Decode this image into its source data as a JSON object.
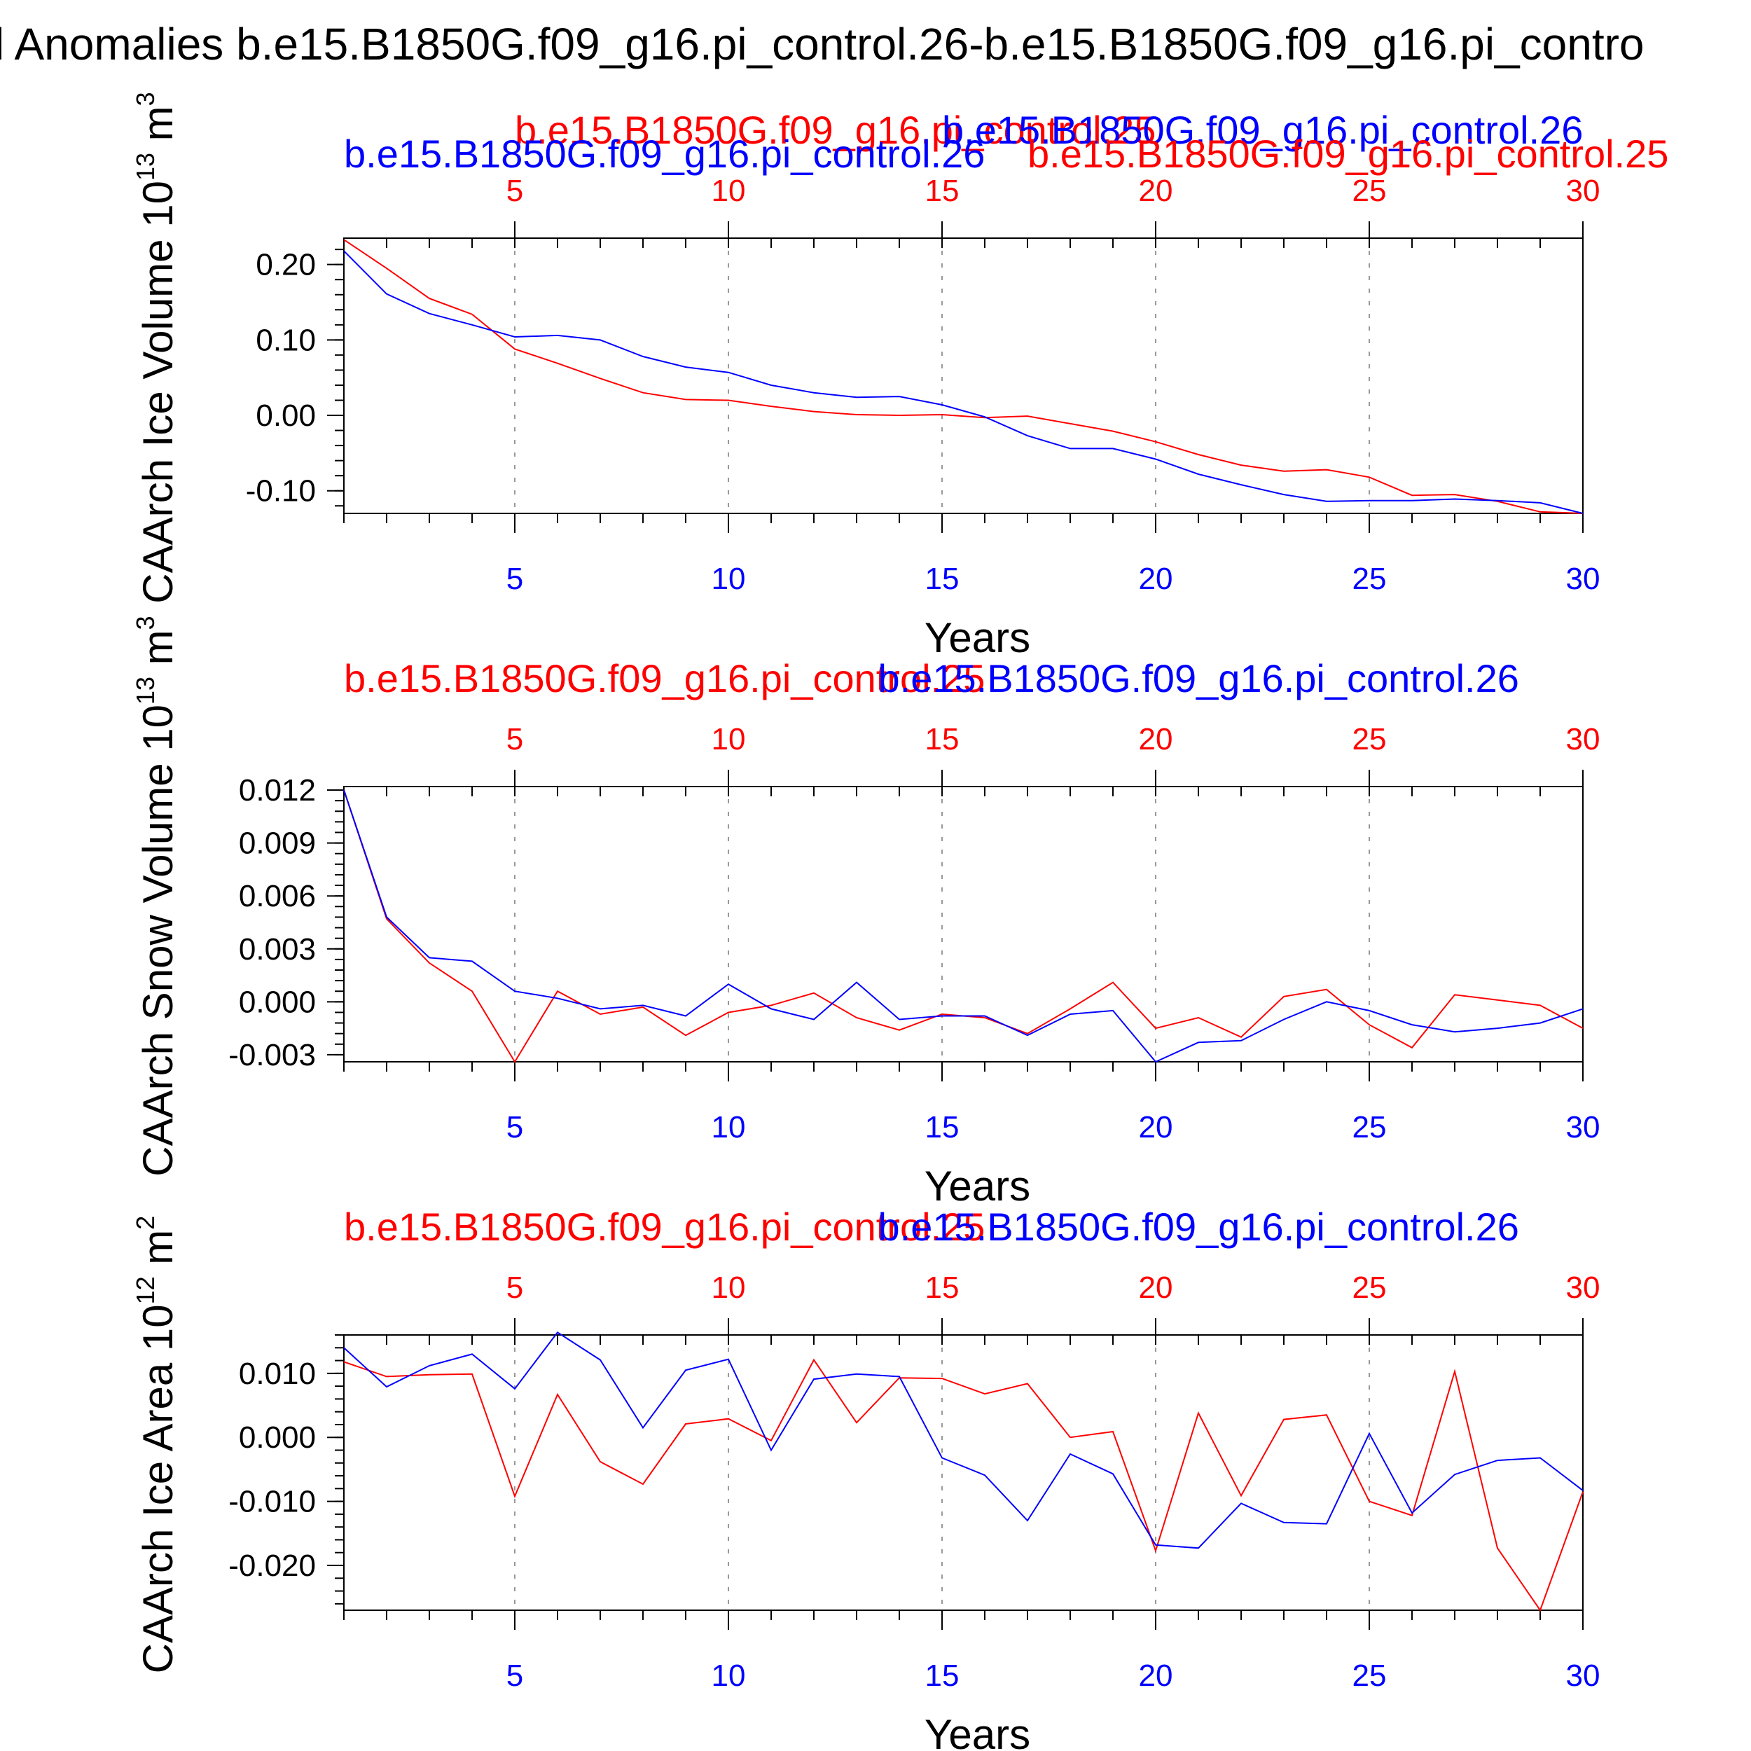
{
  "figure": {
    "title": "l Anomalies b.e15.B1850G.f09_g16.pi_control.26-b.e15.B1850G.f09_g16.pi_contro",
    "colors": {
      "case_red": "#ff0000",
      "case_blue": "#0000ff",
      "axis": "#000000",
      "grid": "#999999"
    }
  },
  "chart_data": [
    {
      "type": "line",
      "ylabel": "CAArch Ice Volume 10",
      "ylabel_exp": "13",
      "ylabel_unit": " m",
      "ylabel_unit_exp": "3",
      "xlabel": "Years",
      "xlim": [
        1,
        30
      ],
      "ylim": [
        -0.13,
        0.235
      ],
      "yticks": [
        -0.1,
        0.0,
        0.1,
        0.2
      ],
      "ytick_labels": [
        "-0.10",
        "0.00",
        "0.10",
        "0.20"
      ],
      "yminor_step": 0.02,
      "xticks": [
        5,
        10,
        15,
        20,
        25,
        30
      ],
      "xtick_labels": [
        "5",
        "10",
        "15",
        "20",
        "25",
        "30"
      ],
      "grid": "vertical-dashed",
      "x": [
        1,
        2,
        3,
        4,
        5,
        6,
        7,
        8,
        9,
        10,
        11,
        12,
        13,
        14,
        15,
        16,
        17,
        18,
        19,
        20,
        21,
        22,
        23,
        24,
        25,
        26,
        27,
        28,
        29,
        30
      ],
      "top_labels": [
        {
          "text": "b.e15.B1850G.f09_g16.pi_control.25",
          "color": "#ff0000",
          "x": 5,
          "row": 0
        },
        {
          "text": "b.e15.B1850G.f09_g16.pi_control.26",
          "color": "#0000ff",
          "x": 15,
          "row": 0
        },
        {
          "text": "b.e15.B1850G.f09_g16.pi_control.26",
          "color": "#0000ff",
          "x": 1,
          "row": 1
        },
        {
          "text": "b.e15.B1850G.f09_g16.pi_control.25",
          "color": "#ff0000",
          "x": 17,
          "row": 1
        }
      ],
      "series": [
        {
          "name": "b.e15.B1850G.f09_g16.pi_control.25",
          "color": "#ff0000",
          "values": [
            0.233,
            0.195,
            0.155,
            0.134,
            0.088,
            0.069,
            0.049,
            0.03,
            0.021,
            0.02,
            0.012,
            0.005,
            0.001,
            0.0,
            0.001,
            -0.003,
            -0.001,
            -0.011,
            -0.021,
            -0.035,
            -0.052,
            -0.066,
            -0.074,
            -0.072,
            -0.082,
            -0.106,
            -0.105,
            -0.114,
            -0.128,
            -0.13
          ]
        },
        {
          "name": "b.e15.B1850G.f09_g16.pi_control.26",
          "color": "#0000ff",
          "values": [
            0.218,
            0.161,
            0.135,
            0.12,
            0.104,
            0.106,
            0.1,
            0.078,
            0.064,
            0.057,
            0.04,
            0.03,
            0.024,
            0.025,
            0.014,
            -0.002,
            -0.027,
            -0.044,
            -0.044,
            -0.058,
            -0.078,
            -0.092,
            -0.105,
            -0.114,
            -0.113,
            -0.113,
            -0.111,
            -0.113,
            -0.116,
            -0.13
          ]
        }
      ]
    },
    {
      "type": "line",
      "ylabel": "CAArch Snow Volume 10",
      "ylabel_exp": "13",
      "ylabel_unit": " m",
      "ylabel_unit_exp": "3",
      "xlabel": "Years",
      "xlim": [
        1,
        30
      ],
      "ylim": [
        -0.0034,
        0.0122
      ],
      "yticks": [
        -0.003,
        0.0,
        0.003,
        0.006,
        0.009,
        0.012
      ],
      "ytick_labels": [
        "-0.003",
        "0.000",
        "0.003",
        "0.006",
        "0.009",
        "0.012"
      ],
      "yminor_step": 0.0006,
      "xticks": [
        5,
        10,
        15,
        20,
        25,
        30
      ],
      "xtick_labels": [
        "5",
        "10",
        "15",
        "20",
        "25",
        "30"
      ],
      "grid": "vertical-dashed",
      "x": [
        1,
        2,
        3,
        4,
        5,
        6,
        7,
        8,
        9,
        10,
        11,
        12,
        13,
        14,
        15,
        16,
        17,
        18,
        19,
        20,
        21,
        22,
        23,
        24,
        25,
        26,
        27,
        28,
        29,
        30
      ],
      "top_labels": [
        {
          "text": "b.e15.B1850G.f09_g16.pi_control.25",
          "color": "#ff0000",
          "x": 1,
          "row": 0
        },
        {
          "text": "b.e15.B1850G.f09_g16.pi_control.26",
          "color": "#0000ff",
          "x": 13.5,
          "row": 0
        }
      ],
      "series": [
        {
          "name": "b.e15.B1850G.f09_g16.pi_control.25",
          "color": "#ff0000",
          "values": [
            0.012,
            0.0047,
            0.0022,
            0.0006,
            -0.0034,
            0.0006,
            -0.0007,
            -0.0003,
            -0.0019,
            -0.0006,
            -0.0002,
            0.0005,
            -0.0009,
            -0.0016,
            -0.0007,
            -0.0009,
            -0.0018,
            -0.0004,
            0.0011,
            -0.0015,
            -0.0009,
            -0.002,
            0.0003,
            0.0007,
            -0.0013,
            -0.0026,
            0.0004,
            0.0001,
            -0.0002,
            -0.0015
          ]
        },
        {
          "name": "b.e15.B1850G.f09_g16.pi_control.26",
          "color": "#0000ff",
          "values": [
            0.012,
            0.0048,
            0.0025,
            0.0023,
            0.0006,
            0.0002,
            -0.0004,
            -0.0002,
            -0.0008,
            0.001,
            -0.0004,
            -0.001,
            0.0011,
            -0.001,
            -0.0008,
            -0.0008,
            -0.0019,
            -0.0007,
            -0.0005,
            -0.0034,
            -0.0023,
            -0.0022,
            -0.001,
            0.0,
            -0.0005,
            -0.0013,
            -0.0017,
            -0.0015,
            -0.0012,
            -0.0004
          ]
        }
      ]
    },
    {
      "type": "line",
      "ylabel": "CAArch Ice Area 10",
      "ylabel_exp": "12",
      "ylabel_unit": " m",
      "ylabel_unit_exp": "2",
      "xlabel": "Years",
      "xlim": [
        1,
        30
      ],
      "ylim": [
        -0.027,
        0.016
      ],
      "yticks": [
        -0.02,
        -0.01,
        0.0,
        0.01
      ],
      "ytick_labels": [
        "-0.020",
        "-0.010",
        "0.000",
        "0.010"
      ],
      "yminor_step": 0.002,
      "xticks": [
        5,
        10,
        15,
        20,
        25,
        30
      ],
      "xtick_labels": [
        "5",
        "10",
        "15",
        "20",
        "25",
        "30"
      ],
      "grid": "vertical-dashed",
      "x": [
        1,
        2,
        3,
        4,
        5,
        6,
        7,
        8,
        9,
        10,
        11,
        12,
        13,
        14,
        15,
        16,
        17,
        18,
        19,
        20,
        21,
        22,
        23,
        24,
        25,
        26,
        27,
        28,
        29,
        30
      ],
      "top_labels": [
        {
          "text": "b.e15.B1850G.f09_g16.pi_control.25",
          "color": "#ff0000",
          "x": 1,
          "row": 0
        },
        {
          "text": "b.e15.B1850G.f09_g16.pi_control.26",
          "color": "#0000ff",
          "x": 13.5,
          "row": 0
        }
      ],
      "series": [
        {
          "name": "b.e15.B1850G.f09_g16.pi_control.25",
          "color": "#ff0000",
          "values": [
            0.0118,
            0.0095,
            0.0098,
            0.0099,
            -0.0092,
            0.0067,
            -0.0038,
            -0.0073,
            0.0021,
            0.0029,
            -0.0005,
            0.0121,
            0.0023,
            0.0093,
            0.0092,
            0.0068,
            0.0084,
            0.0,
            0.0009,
            -0.0177,
            0.0038,
            -0.0091,
            0.0028,
            0.0035,
            -0.01,
            -0.0122,
            0.0103,
            -0.0173,
            -0.027,
            -0.0085
          ]
        },
        {
          "name": "b.e15.B1850G.f09_g16.pi_control.26",
          "color": "#0000ff",
          "values": [
            0.014,
            0.0079,
            0.0112,
            0.013,
            0.0076,
            0.0164,
            0.0121,
            0.0015,
            0.0105,
            0.0122,
            -0.002,
            0.0091,
            0.0099,
            0.0095,
            -0.0032,
            -0.0059,
            -0.013,
            -0.0026,
            -0.0057,
            -0.0168,
            -0.0173,
            -0.0103,
            -0.0133,
            -0.0135,
            0.0006,
            -0.0118,
            -0.0058,
            -0.0036,
            -0.0032,
            -0.0083
          ]
        }
      ]
    }
  ]
}
